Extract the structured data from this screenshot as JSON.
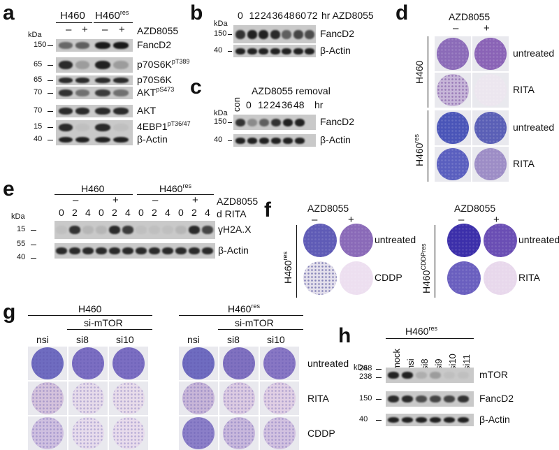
{
  "panel_letters": {
    "a": "a",
    "b": "b",
    "c": "c",
    "d": "d",
    "e": "e",
    "f": "f",
    "g": "g",
    "h": "h"
  },
  "common": {
    "kda": "kDa",
    "drug": "AZD8055",
    "minus": "–",
    "plus": "+",
    "actin": "β-Actin"
  },
  "panel_a": {
    "cell1": "H460",
    "cell2_base": "H460",
    "cell2_sup": "res",
    "rows": [
      {
        "label": "FancD2",
        "sup": "",
        "mw": "150"
      },
      {
        "label": "p70S6K",
        "sup": "pT389",
        "mw": "65"
      },
      {
        "label": "p70S6K",
        "sup": "",
        "mw": "65"
      },
      {
        "label": "AKT",
        "sup": "pS473",
        "mw": "70"
      },
      {
        "label": "AKT",
        "sup": "",
        "mw": "70"
      },
      {
        "label": "4EBP1",
        "sup": "pT36/47",
        "mw": "15"
      },
      {
        "label": "β-Actin",
        "sup": "",
        "mw": "40"
      }
    ]
  },
  "panel_b": {
    "timepoints": [
      "0",
      "12",
      "24",
      "36",
      "48",
      "60",
      "72"
    ],
    "unit_label": "hr AZD8055",
    "rows": [
      {
        "label": "FancD2",
        "mw": "150"
      },
      {
        "label": "β-Actin",
        "mw": "40"
      }
    ]
  },
  "panel_c": {
    "header": "AZD8055 removal",
    "con": "con",
    "timepoints": [
      "0",
      "12",
      "24",
      "36",
      "48"
    ],
    "unit": "hr",
    "rows": [
      {
        "label": "FancD2",
        "mw": "150"
      },
      {
        "label": "β-Actin",
        "mw": "40"
      }
    ]
  },
  "panel_d": {
    "cell1": "H460",
    "cell2_base": "H460",
    "cell2_sup": "res",
    "conditions": [
      "untreated",
      "RITA",
      "untreated",
      "RITA"
    ]
  },
  "panel_e": {
    "cell1": "H460",
    "cell2_base": "H460",
    "cell2_sup": "res",
    "days": [
      "0",
      "2",
      "4",
      "0",
      "2",
      "4",
      "0",
      "2",
      "4",
      "0",
      "2",
      "4"
    ],
    "d_label": "d RITA",
    "rows": [
      {
        "label": "γH2A.X",
        "mw": "15"
      },
      {
        "label": "β-Actin",
        "mw": "40"
      }
    ],
    "extra_mw": "55"
  },
  "panel_f": {
    "cell1_base": "H460",
    "cell1_sup": "res",
    "cell2_base": "H460",
    "cell2_sup": "CDDPres",
    "left_conditions": [
      "untreated",
      "CDDP"
    ],
    "right_conditions": [
      "untreated",
      "RITA"
    ]
  },
  "panel_g": {
    "cell1": "H460",
    "cell2_base": "H460",
    "cell2_sup": "res",
    "sim": "si-mTOR",
    "lanes": [
      "nsi",
      "si8",
      "si10"
    ],
    "conditions": [
      "untreated",
      "RITA",
      "CDDP"
    ]
  },
  "panel_h": {
    "cell_base": "H460",
    "cell_sup": "res",
    "lanes": [
      "mock",
      "nsi",
      "si8",
      "si9",
      "si10",
      "si11"
    ],
    "rows": [
      {
        "label": "mTOR",
        "mw": [
          "268",
          "238"
        ]
      },
      {
        "label": "FancD2",
        "mw": [
          "150"
        ]
      },
      {
        "label": "β-Actin",
        "mw": [
          "40"
        ]
      }
    ]
  }
}
